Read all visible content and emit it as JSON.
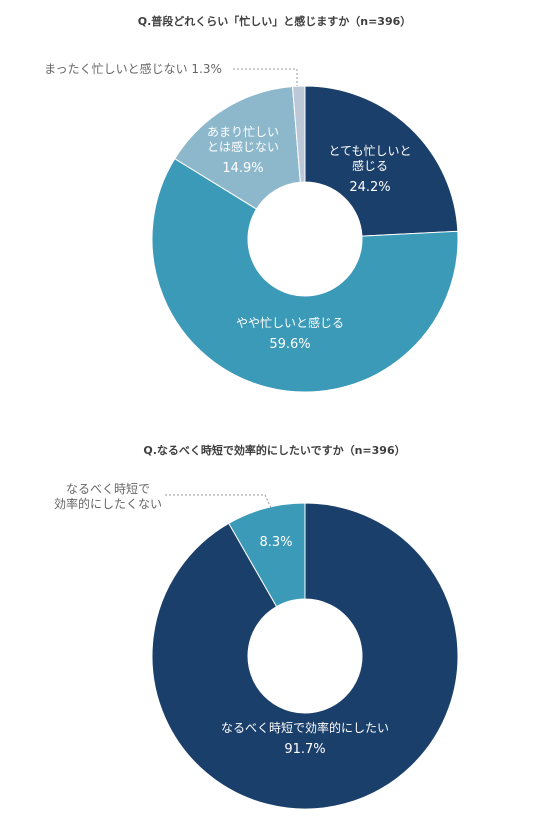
{
  "chart_data": [
    {
      "type": "pie",
      "title": "Q.普段どれくらい「忙しい」と感じますか（n=396）",
      "categories": [
        "とても忙しいと感じる",
        "やや忙しいと感じる",
        "あまり忙しいとは感じない",
        "まったく忙しいと感じない"
      ],
      "series": [
        {
          "values": [
            24.2,
            59.6,
            14.9,
            1.3
          ],
          "colors": [
            "#1b3f6b",
            "#3b9ab8",
            "#8db8cc",
            "#bcc8d8"
          ]
        }
      ],
      "labels": [
        {
          "lines": [
            "とても忙しいと",
            "感じる"
          ],
          "value": "24.2%",
          "color": "#ffffff"
        },
        {
          "lines": [
            "やや忙しいと感じる"
          ],
          "value": "59.6%",
          "color": "#ffffff"
        },
        {
          "lines": [
            "あまり忙しい",
            "とは感じない"
          ],
          "value": "14.9%",
          "color": "#ffffff"
        },
        {
          "lines": [
            "まったく忙しいと感じない"
          ],
          "value": "1.3%",
          "color": "#666666"
        }
      ]
    },
    {
      "type": "pie",
      "title": "Q.なるべく時短で効率的にしたいですか（n=396）",
      "categories": [
        "なるべく時短で効率的にしたい",
        "なるべく時短で効率的にしたくない"
      ],
      "series": [
        {
          "values": [
            91.7,
            8.3
          ],
          "colors": [
            "#1b3f6b",
            "#3b9ab8"
          ]
        }
      ],
      "labels": [
        {
          "lines": [
            "なるべく時短で効率的にしたい"
          ],
          "value": "91.7%",
          "color": "#ffffff"
        },
        {
          "lines": [
            "なるべく時短で",
            "効率的にしたくない"
          ],
          "value": "8.3%",
          "color": "#666666"
        }
      ]
    }
  ]
}
